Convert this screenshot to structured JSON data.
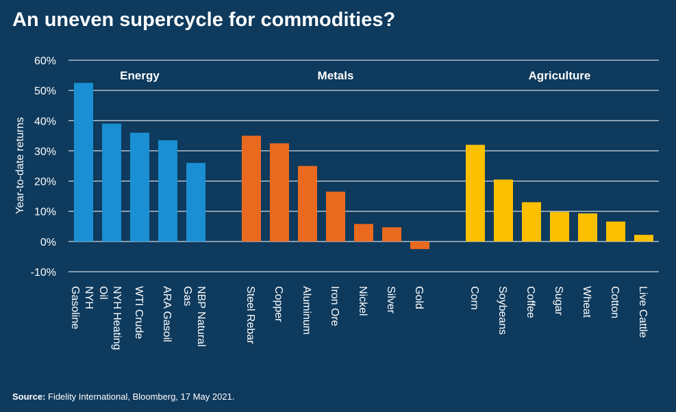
{
  "chart_data": {
    "type": "bar",
    "title": "An uneven supercycle for commodities?",
    "y_label": "Year-to-date returns",
    "source_label": "Source:",
    "source": "Fidelity International, Bloomberg, 17 May 2021.",
    "ylim": [
      -10,
      60
    ],
    "yticks": [
      {
        "value": -10,
        "label": "-10%"
      },
      {
        "value": 0,
        "label": "0%"
      },
      {
        "value": 10,
        "label": "10%"
      },
      {
        "value": 20,
        "label": "20%"
      },
      {
        "value": 30,
        "label": "30%"
      },
      {
        "value": 40,
        "label": "40%"
      },
      {
        "value": 50,
        "label": "50%"
      },
      {
        "value": 60,
        "label": "60%"
      }
    ],
    "grid": true,
    "groups": [
      {
        "name": "Energy",
        "color": "#1a8fd3",
        "categories": [
          "NYH\nGasoline",
          "NYH Heating\nOil",
          "WTI Crude",
          "ARA Gasoil",
          "NBP Natural\nGas"
        ],
        "values": [
          52.5,
          39,
          36,
          33.5,
          26
        ]
      },
      {
        "name": "Metals",
        "color": "#e96a1f",
        "categories": [
          "Steel Rebar",
          "Copper",
          "Aluminum",
          "Iron Ore",
          "Nickel",
          "Silver",
          "Gold"
        ],
        "values": [
          35,
          32.5,
          25,
          16.5,
          5.8,
          4.7,
          -2.5
        ]
      },
      {
        "name": "Agriculture",
        "color": "#fcc000",
        "categories": [
          "Corn",
          "Soybeans",
          "Coffee",
          "Sugar",
          "Wheat",
          "Cotton",
          "Live Cattle"
        ],
        "values": [
          32,
          20.5,
          13,
          9.8,
          9.3,
          6.6,
          2.2
        ]
      }
    ]
  }
}
